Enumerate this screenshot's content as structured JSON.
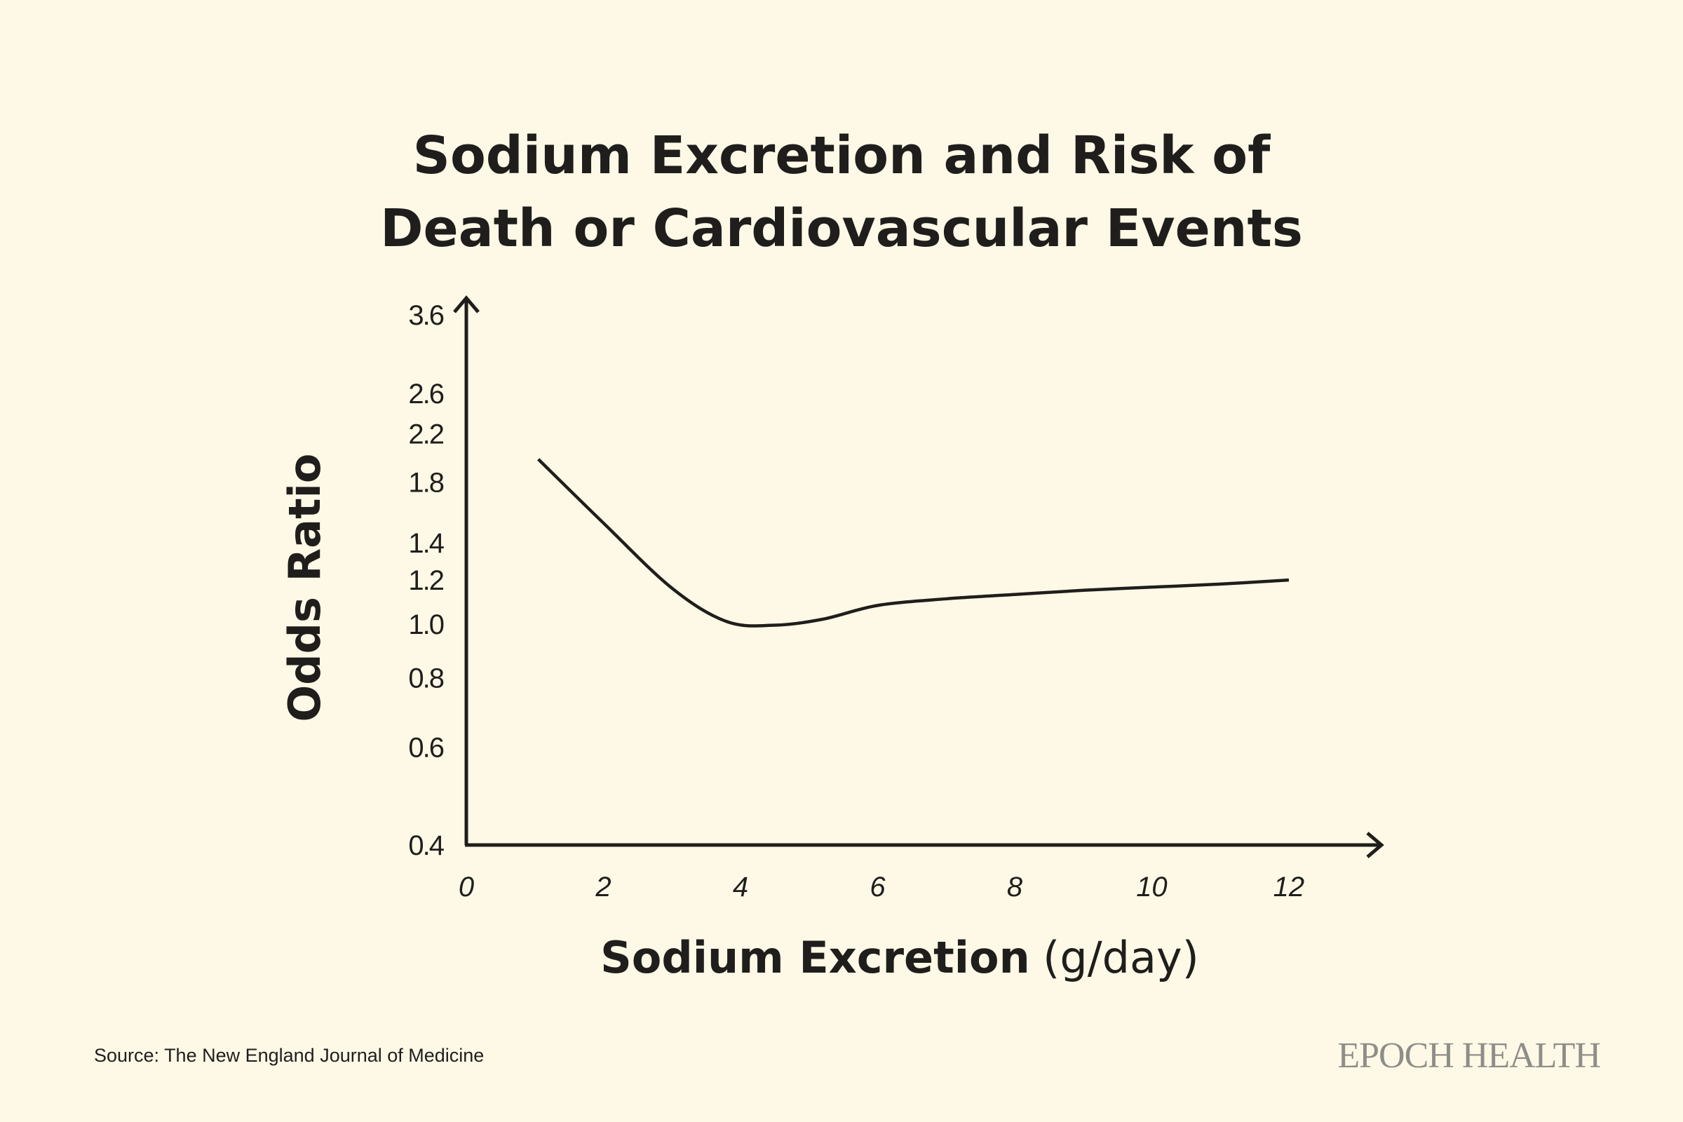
{
  "chart_data": {
    "type": "line",
    "title_lines": [
      "Sodium Excretion and Risk of",
      "Death or Cardiovascular Events"
    ],
    "xlabel": "Sodium Excretion",
    "xlabel_unit": "(g/day)",
    "ylabel": "Odds Ratio",
    "x_ticks": [
      0,
      2,
      4,
      6,
      8,
      10,
      12
    ],
    "y_ticks": [
      0.4,
      0.6,
      0.8,
      1.0,
      1.2,
      1.4,
      1.8,
      2.2,
      2.6,
      3.6
    ],
    "y_tick_labels": [
      "0.4",
      "0.6",
      "0.8",
      "1.0",
      "1.2",
      "1.4",
      "1.8",
      "2.2",
      "2.6",
      "3.6"
    ],
    "y_scale": "log",
    "xlim": [
      0,
      13.3
    ],
    "ylim": [
      0.4,
      4.0
    ],
    "grid": false,
    "series": [
      {
        "x": [
          1.05,
          2.0,
          3.0,
          3.8,
          4.5,
          5.2,
          6.0,
          7.0,
          8.0,
          9.0,
          10.0,
          11.0,
          12.0
        ],
        "y": [
          1.98,
          1.52,
          1.16,
          1.01,
          0.995,
          1.02,
          1.08,
          1.11,
          1.13,
          1.15,
          1.165,
          1.18,
          1.2
        ]
      }
    ]
  },
  "footer": {
    "source": "Source: The New England Journal of Medicine",
    "brand": "EPOCH HEALTH"
  },
  "colors": {
    "background": "#fdf9e6",
    "ink": "#1f1e1c",
    "brand": "#8f8d88"
  }
}
